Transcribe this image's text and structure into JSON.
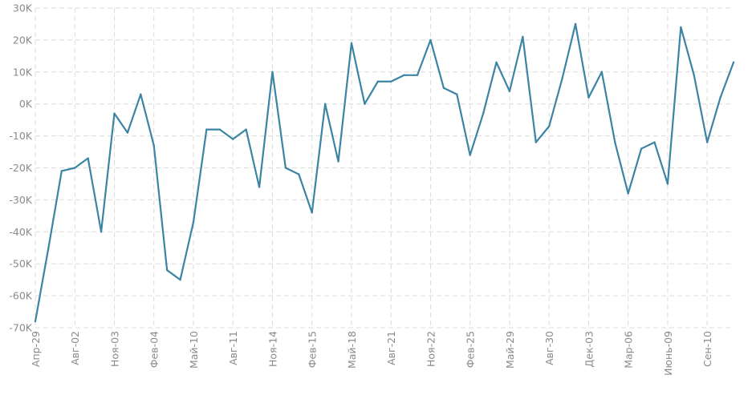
{
  "chart_data": {
    "type": "line",
    "title": "",
    "xlabel": "",
    "ylabel": "",
    "ylim": [
      -70000,
      30000
    ],
    "yticks": [
      {
        "value": 30000,
        "label": "30K"
      },
      {
        "value": 20000,
        "label": "20K"
      },
      {
        "value": 10000,
        "label": "10K"
      },
      {
        "value": 0,
        "label": "0K"
      },
      {
        "value": -10000,
        "label": "-10K"
      },
      {
        "value": -20000,
        "label": "-20K"
      },
      {
        "value": -30000,
        "label": "-30K"
      },
      {
        "value": -40000,
        "label": "-40K"
      },
      {
        "value": -50000,
        "label": "-50K"
      },
      {
        "value": -60000,
        "label": "-60K"
      },
      {
        "value": -70000,
        "label": "-70K"
      }
    ],
    "xticks": [
      {
        "index": 0,
        "label": "Апр-29"
      },
      {
        "index": 3,
        "label": "Авг-02"
      },
      {
        "index": 6,
        "label": "Ноя-03"
      },
      {
        "index": 9,
        "label": "Фев-04"
      },
      {
        "index": 12,
        "label": "Май-10"
      },
      {
        "index": 15,
        "label": "Авг-11"
      },
      {
        "index": 18,
        "label": "Ноя-14"
      },
      {
        "index": 21,
        "label": "Фев-15"
      },
      {
        "index": 24,
        "label": "Май-18"
      },
      {
        "index": 27,
        "label": "Авг-21"
      },
      {
        "index": 30,
        "label": "Ноя-22"
      },
      {
        "index": 33,
        "label": "Фев-25"
      },
      {
        "index": 36,
        "label": "Май-29"
      },
      {
        "index": 39,
        "label": "Авг-30"
      },
      {
        "index": 42,
        "label": "Дек-03"
      },
      {
        "index": 45,
        "label": "Мар-06"
      },
      {
        "index": 48,
        "label": "Июнь-09"
      },
      {
        "index": 51,
        "label": "Сен-10"
      }
    ],
    "series": [
      {
        "name": "value",
        "color": "#3b84a3",
        "values": [
          -68000,
          -45000,
          -21000,
          -20000,
          -17000,
          -40000,
          -3000,
          -9000,
          3000,
          -13000,
          -52000,
          -55000,
          -37000,
          -8000,
          -8000,
          -11000,
          -8000,
          -26000,
          10000,
          -20000,
          -22000,
          -34000,
          0,
          -18000,
          19000,
          0,
          7000,
          7000,
          9000,
          9000,
          20000,
          5000,
          3000,
          -16000,
          -3000,
          13000,
          4000,
          21000,
          -12000,
          -7000,
          8000,
          25000,
          2000,
          10000,
          -12000,
          -28000,
          -14000,
          -12000,
          -25000,
          24000,
          9000,
          -12000,
          2000,
          13000
        ]
      }
    ]
  }
}
